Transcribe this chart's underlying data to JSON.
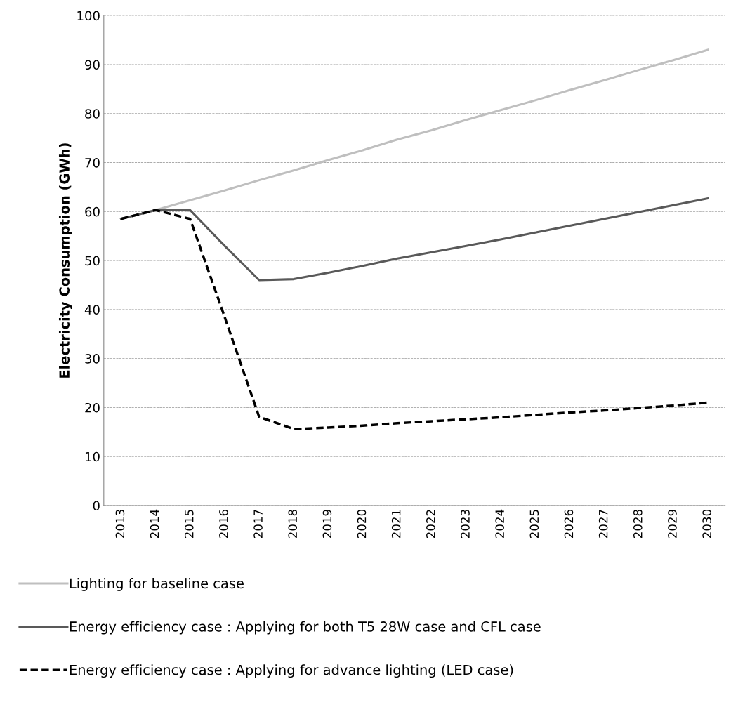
{
  "chart_data": {
    "type": "line",
    "ylabel": "Electricity Consumption (GWh)",
    "categories": [
      "2013",
      "2014",
      "2015",
      "2016",
      "2017",
      "2018",
      "2019",
      "2020",
      "2021",
      "2022",
      "2023",
      "2024",
      "2025",
      "2026",
      "2027",
      "2028",
      "2029",
      "2030"
    ],
    "series": [
      {
        "name": "Lighting for baseline case",
        "color": "#bfbfbf",
        "line_style": "solid",
        "values": [
          58.5,
          60.3,
          62.3,
          64.3,
          66.4,
          68.4,
          70.5,
          72.5,
          74.7,
          76.6,
          78.7,
          80.7,
          82.7,
          84.8,
          86.8,
          88.9,
          90.9,
          93.0
        ]
      },
      {
        "name": "Energy efficiency case : Applying for both T5 28W case and CFL case",
        "color": "#595959",
        "line_style": "solid",
        "values": [
          58.5,
          60.3,
          60.3,
          53.0,
          46.0,
          46.2,
          47.5,
          48.9,
          50.4,
          51.7,
          53.0,
          54.3,
          55.7,
          57.1,
          58.5,
          59.9,
          61.3,
          62.7
        ]
      },
      {
        "name": "Energy efficiency case : Applying for advance lighting (LED case)",
        "color": "#000000",
        "line_style": "dashed",
        "values": [
          58.5,
          60.3,
          58.5,
          38.5,
          18.1,
          15.6,
          15.9,
          16.3,
          16.8,
          17.2,
          17.6,
          18.0,
          18.5,
          19.0,
          19.4,
          19.9,
          20.4,
          21.0
        ]
      }
    ],
    "ylim": [
      0,
      100
    ],
    "yticks": [
      0,
      10,
      20,
      30,
      40,
      50,
      60,
      70,
      80,
      90,
      100
    ],
    "grid": "y",
    "legend": "bottom",
    "marker": "none"
  }
}
